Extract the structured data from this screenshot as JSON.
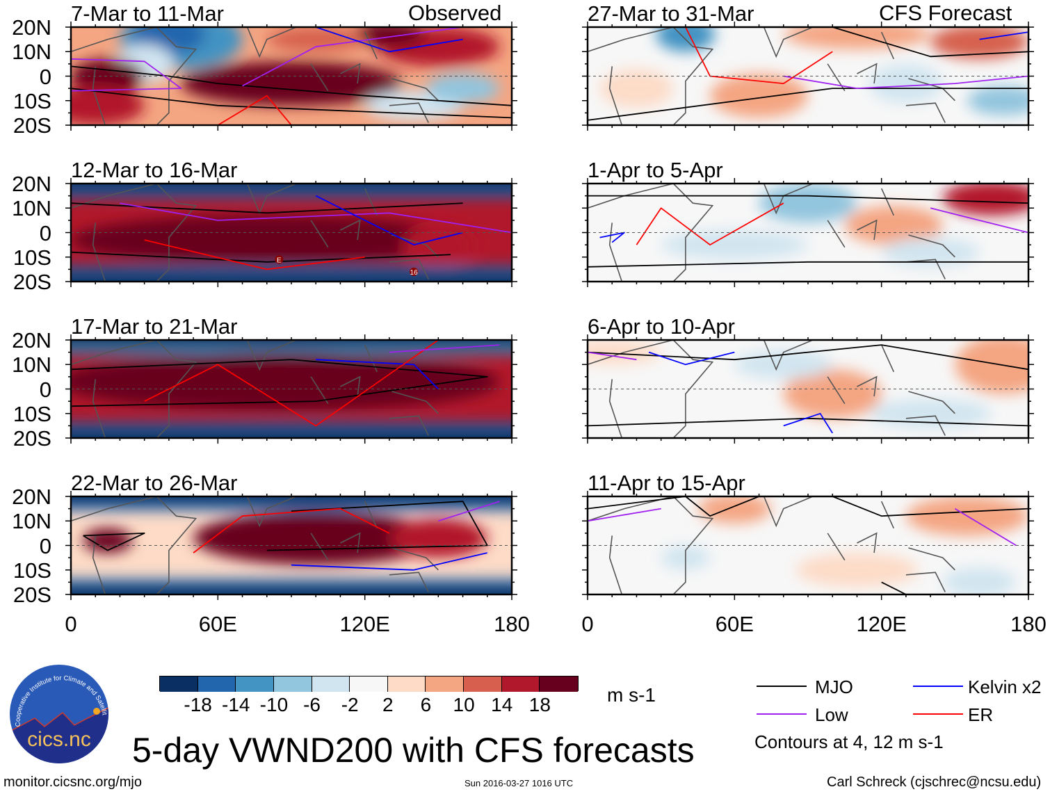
{
  "title": "5-day VWND200 with CFS forecasts",
  "left_column_label": "Observed",
  "right_column_label": "CFS Forecast",
  "panels_left": [
    {
      "title": "7-Mar to 11-Mar"
    },
    {
      "title": "12-Mar to 16-Mar"
    },
    {
      "title": "17-Mar to 21-Mar"
    },
    {
      "title": "22-Mar to 26-Mar"
    }
  ],
  "panels_right": [
    {
      "title": "27-Mar to 31-Mar"
    },
    {
      "title": "1-Apr to 5-Apr"
    },
    {
      "title": "6-Apr to 10-Apr"
    },
    {
      "title": "11-Apr to 15-Apr"
    }
  ],
  "lat_labels": [
    "20N",
    "10N",
    "0",
    "10S",
    "20S"
  ],
  "lon_labels": [
    "0",
    "60E",
    "120E",
    "180"
  ],
  "panel_annotations": [
    "E",
    "16"
  ],
  "colorbar": {
    "colors": [
      "#0a3063",
      "#2266ad",
      "#4393c3",
      "#92c5de",
      "#d1e5f0",
      "#f7f7f7",
      "#fddbc7",
      "#f4a582",
      "#d6604d",
      "#b2182b",
      "#67001f"
    ],
    "labels": [
      "-18",
      "-14",
      "-10",
      "-6",
      "-2",
      "2",
      "6",
      "10",
      "14",
      "18"
    ],
    "units": "m s-1"
  },
  "legend": {
    "items": [
      {
        "label": "MJO",
        "color": "#000000"
      },
      {
        "label": "Kelvin x2",
        "color": "#0000ff"
      },
      {
        "label": "Low",
        "color": "#a020f0"
      },
      {
        "label": "ER",
        "color": "#ff0000"
      }
    ],
    "note": "Contours at 4, 12 m s-1"
  },
  "logo": {
    "arc_text": "Cooperative Institute for Climate and Satellites",
    "name": "cics.nc"
  },
  "footer": {
    "url": "monitor.cicsnc.org/mjo",
    "timestamp": "Sun 2016-03-27 1016 UTC",
    "author": "Carl Schreck (cjschrec@ncsu.edu)"
  }
}
